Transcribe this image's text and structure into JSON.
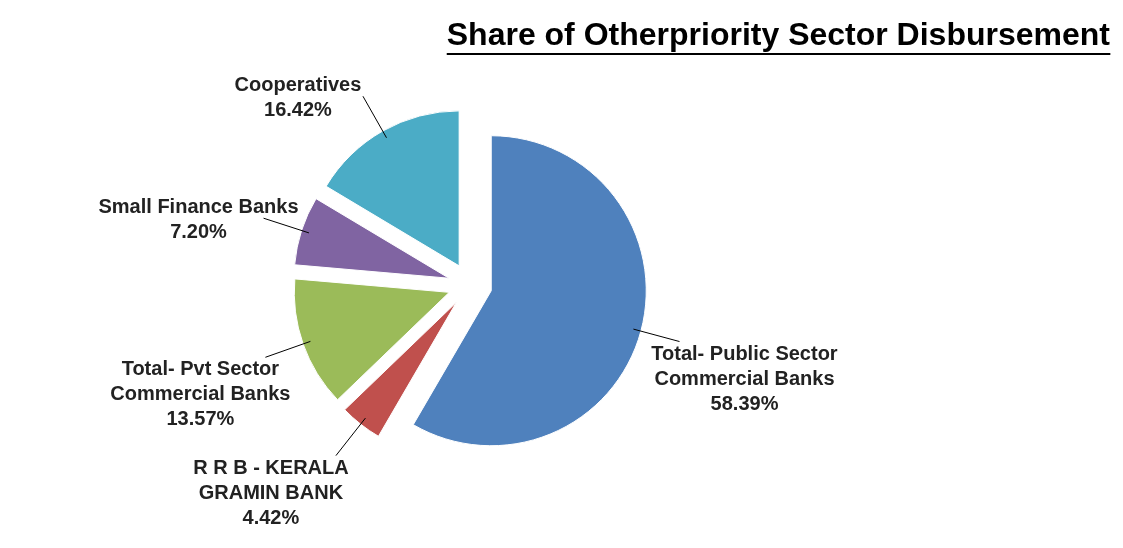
{
  "chart_data": {
    "type": "pie",
    "title": "Share of Otherpriority Sector Disbursement",
    "categories": [
      "Total- Public Sector Commercial Banks",
      "R R B - KERALA GRAMIN BANK",
      "Total- Pvt Sector Commercial Banks",
      "Small Finance Banks",
      "Cooperatives"
    ],
    "values": [
      58.39,
      4.42,
      13.57,
      7.2,
      16.42
    ],
    "value_labels": [
      "58.39%",
      "4.42%",
      "13.57%",
      "7.20%",
      "16.42%"
    ],
    "colors": [
      "#4f81bd",
      "#c0504d",
      "#9bbb59",
      "#8064a2",
      "#4bacc6"
    ]
  }
}
